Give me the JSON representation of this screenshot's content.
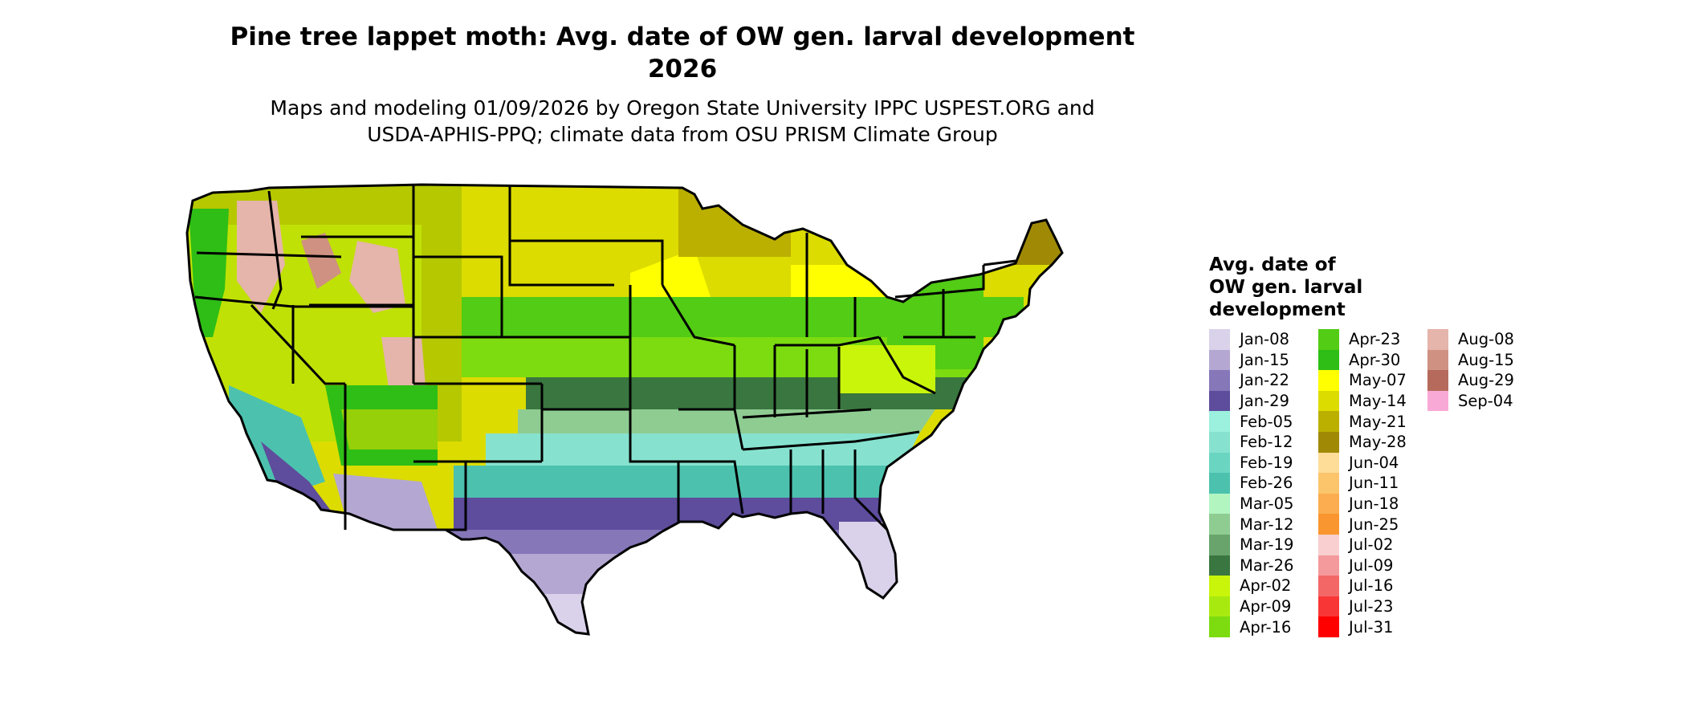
{
  "title": "Pine tree lappet moth: Avg. date of OW gen. larval development\n2026",
  "subtitle": "Maps and modeling 01/09/2026 by Oregon State University IPPC USPEST.ORG and\nUSDA-APHIS-PPQ; climate data from OSU PRISM Climate Group",
  "legend": {
    "title": "Avg. date of\nOW gen. larval\ndevelopment",
    "columns": [
      [
        {
          "label": "Jan-08",
          "color": "#d9d2ea"
        },
        {
          "label": "Jan-15",
          "color": "#b4a7d2"
        },
        {
          "label": "Jan-22",
          "color": "#8577b8"
        },
        {
          "label": "Jan-29",
          "color": "#5e4c9c"
        },
        {
          "label": "Feb-05",
          "color": "#9bf0de"
        },
        {
          "label": "Feb-12",
          "color": "#86e2cf"
        },
        {
          "label": "Feb-19",
          "color": "#6ad6c2"
        },
        {
          "label": "Feb-26",
          "color": "#4cc2ae"
        },
        {
          "label": "Mar-05",
          "color": "#b3f5c1"
        },
        {
          "label": "Mar-12",
          "color": "#8fcc92"
        },
        {
          "label": "Mar-19",
          "color": "#68a46b"
        },
        {
          "label": "Mar-26",
          "color": "#3a763f"
        },
        {
          "label": "Apr-02",
          "color": "#c8f50a"
        },
        {
          "label": "Apr-09",
          "color": "#a8ea10"
        },
        {
          "label": "Apr-16",
          "color": "#7cdc10"
        }
      ],
      [
        {
          "label": "Apr-23",
          "color": "#52cc14"
        },
        {
          "label": "Apr-30",
          "color": "#2ebe16"
        },
        {
          "label": "May-07",
          "color": "#ffff00"
        },
        {
          "label": "May-14",
          "color": "#dcdc00"
        },
        {
          "label": "May-21",
          "color": "#bbb000"
        },
        {
          "label": "May-28",
          "color": "#a08a05"
        },
        {
          "label": "Jun-04",
          "color": "#fedd98"
        },
        {
          "label": "Jun-11",
          "color": "#fcc56c"
        },
        {
          "label": "Jun-18",
          "color": "#fbad4f"
        },
        {
          "label": "Jun-25",
          "color": "#f99630"
        },
        {
          "label": "Jul-02",
          "color": "#f9cfcf"
        },
        {
          "label": "Jul-09",
          "color": "#f4999c"
        },
        {
          "label": "Jul-16",
          "color": "#f46767"
        },
        {
          "label": "Jul-23",
          "color": "#f93636"
        },
        {
          "label": "Jul-31",
          "color": "#ff0000"
        }
      ],
      [
        {
          "label": "Aug-08",
          "color": "#e5b4aa"
        },
        {
          "label": "Aug-15",
          "color": "#cf9182"
        },
        {
          "label": "Aug-29",
          "color": "#b56a5b"
        },
        {
          "label": "Sep-04",
          "color": "#f9a9d5"
        }
      ]
    ]
  },
  "map": {
    "background": "#ffffff",
    "border_color": "#000000"
  }
}
